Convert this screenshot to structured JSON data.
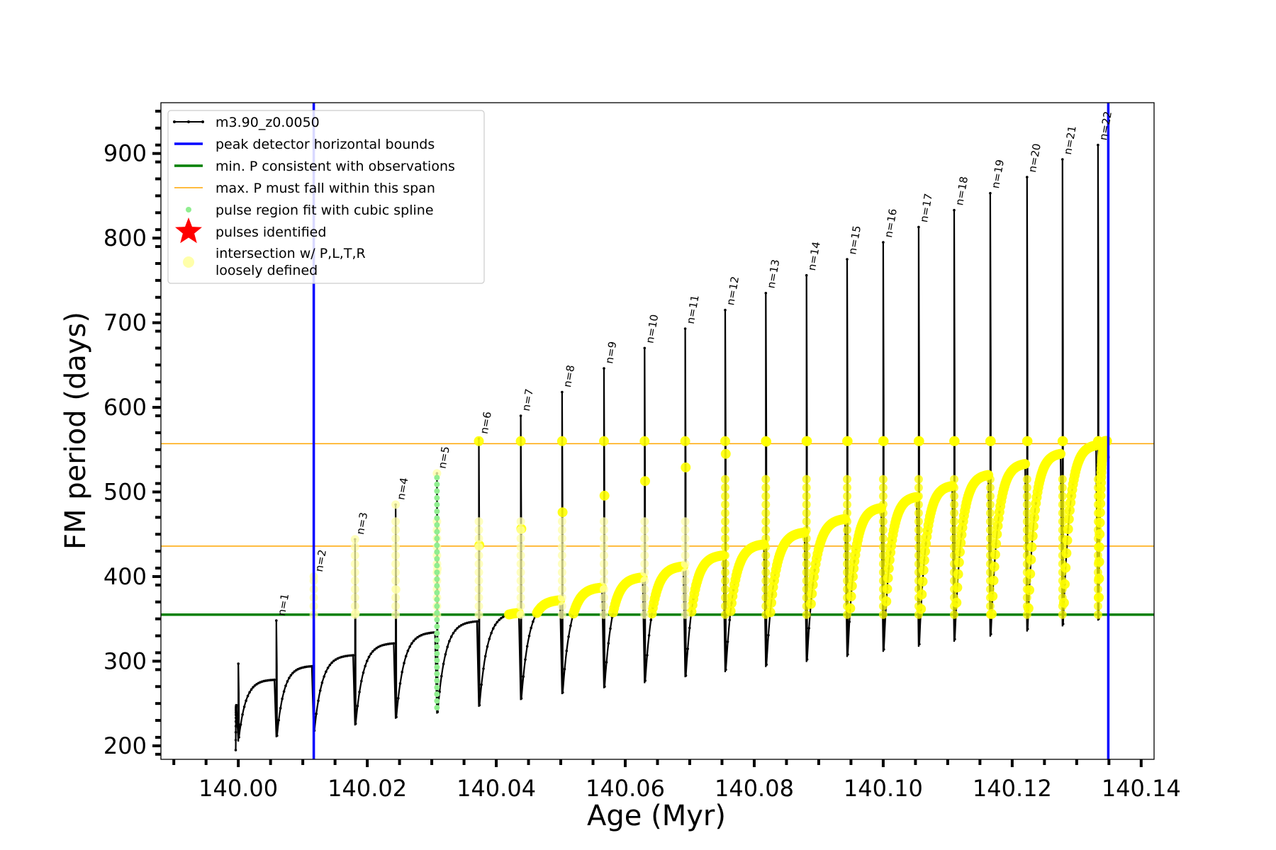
{
  "chart_data": {
    "type": "line",
    "xlabel": "Age (Myr)",
    "ylabel": "FM period (days)",
    "xlim": [
      139.988,
      140.142
    ],
    "ylim": [
      184,
      960
    ],
    "xticks": [
      140.0,
      140.02,
      140.04,
      140.06,
      140.08,
      140.1,
      140.12,
      140.14
    ],
    "xtick_labels": [
      "140.00",
      "140.02",
      "140.04",
      "140.06",
      "140.08",
      "140.10",
      "140.12",
      "140.14"
    ],
    "yticks": [
      200,
      300,
      400,
      500,
      600,
      700,
      800,
      900
    ],
    "ytick_labels": [
      "200",
      "300",
      "400",
      "500",
      "600",
      "700",
      "800",
      "900"
    ],
    "grid": false,
    "legend": {
      "placement": "top-left",
      "entries": [
        {
          "label": "m3.90_z0.0050",
          "style": "black-line-dots",
          "color": "#000000"
        },
        {
          "label": "peak detector horizontal bounds",
          "style": "line",
          "color": "#0000ff"
        },
        {
          "label": "min. P consistent with observations",
          "style": "line",
          "color": "#008000"
        },
        {
          "label": "max. P must fall within this span",
          "style": "thin-line",
          "color": "#ffa500"
        },
        {
          "label": "pulse region fit with cubic spline",
          "style": "small-dot",
          "color": "#90ee90"
        },
        {
          "label": "pulses identified",
          "style": "star",
          "color": "#ff0000"
        },
        {
          "label": "intersection w/ P,L,T,R",
          "label2": "loosely defined",
          "style": "big-dot",
          "color": "#ffffaa"
        }
      ]
    },
    "reference_lines": {
      "vertical_bounds": [
        140.0117,
        140.1349
      ],
      "min_period": 355,
      "max_period_span": [
        436,
        557
      ]
    },
    "pulses": [
      {
        "n": 0,
        "age": 139.9995,
        "end_age": 139.9995,
        "trough": 195,
        "peak_pre": 248,
        "plateau": 248,
        "dip": 195,
        "label": ""
      },
      {
        "n": 0,
        "age": 140.0,
        "end_age": 140.0059,
        "trough": 210,
        "peak_pre": 278,
        "plateau": 278,
        "dip": 205,
        "spike": 297,
        "label": ""
      },
      {
        "n": 1,
        "age": 140.0059,
        "end_age": 140.0117,
        "trough": 212,
        "peak_pre": 294,
        "plateau": 294,
        "dip": 210,
        "spike": 348,
        "label": "n=1"
      },
      {
        "n": 2,
        "age": 140.0117,
        "end_age": 140.0181,
        "trough": 218,
        "peak_pre": 307,
        "plateau": 307,
        "dip": 216,
        "spike": 400,
        "label": "n=2"
      },
      {
        "n": 3,
        "age": 140.0181,
        "end_age": 140.0244,
        "trough": 226,
        "peak_pre": 321,
        "plateau": 321,
        "dip": 224,
        "spike": 444,
        "label": "n=3"
      },
      {
        "n": 4,
        "age": 140.0244,
        "end_age": 140.0308,
        "trough": 234,
        "peak_pre": 334,
        "plateau": 334,
        "dip": 232,
        "spike": 485,
        "label": "n=4"
      },
      {
        "n": 5,
        "age": 140.0308,
        "end_age": 140.0373,
        "trough": 240,
        "peak_pre": 347,
        "plateau": 347,
        "dip": 238,
        "spike": 522,
        "label": "n=5"
      },
      {
        "n": 6,
        "age": 140.0373,
        "end_age": 140.0438,
        "trough": 248,
        "peak_pre": 357,
        "plateau": 357,
        "dip": 246,
        "spike": 563,
        "label": "n=6"
      },
      {
        "n": 7,
        "age": 140.0438,
        "end_age": 140.0502,
        "trough": 256,
        "peak_pre": 372,
        "plateau": 372,
        "dip": 254,
        "spike": 590,
        "label": "n=7"
      },
      {
        "n": 8,
        "age": 140.0502,
        "end_age": 140.0567,
        "trough": 263,
        "peak_pre": 387,
        "plateau": 387,
        "dip": 261,
        "spike": 618,
        "label": "n=8"
      },
      {
        "n": 9,
        "age": 140.0567,
        "end_age": 140.063,
        "trough": 270,
        "peak_pre": 399,
        "plateau": 399,
        "dip": 268,
        "spike": 646,
        "label": "n=9"
      },
      {
        "n": 10,
        "age": 140.063,
        "end_age": 140.0693,
        "trough": 277,
        "peak_pre": 412,
        "plateau": 412,
        "dip": 274,
        "spike": 670,
        "label": "n=10"
      },
      {
        "n": 11,
        "age": 140.0693,
        "end_age": 140.0755,
        "trough": 283,
        "peak_pre": 425,
        "plateau": 425,
        "dip": 281,
        "spike": 693,
        "label": "n=11"
      },
      {
        "n": 12,
        "age": 140.0755,
        "end_age": 140.0818,
        "trough": 290,
        "peak_pre": 438,
        "plateau": 438,
        "dip": 287,
        "spike": 715,
        "label": "n=12"
      },
      {
        "n": 13,
        "age": 140.0818,
        "end_age": 140.0881,
        "trough": 296,
        "peak_pre": 452,
        "plateau": 452,
        "dip": 293,
        "spike": 735,
        "label": "n=13"
      },
      {
        "n": 14,
        "age": 140.0881,
        "end_age": 140.0944,
        "trough": 302,
        "peak_pre": 468,
        "plateau": 468,
        "dip": 299,
        "spike": 756,
        "label": "n=14"
      },
      {
        "n": 15,
        "age": 140.0944,
        "end_age": 140.1,
        "trough": 308,
        "peak_pre": 481,
        "plateau": 481,
        "dip": 305,
        "spike": 775,
        "label": "n=15"
      },
      {
        "n": 16,
        "age": 140.1,
        "end_age": 140.1055,
        "trough": 314,
        "peak_pre": 494,
        "plateau": 494,
        "dip": 311,
        "spike": 795,
        "label": "n=16"
      },
      {
        "n": 17,
        "age": 140.1055,
        "end_age": 140.111,
        "trough": 320,
        "peak_pre": 507,
        "plateau": 507,
        "dip": 317,
        "spike": 813,
        "label": "n=17"
      },
      {
        "n": 18,
        "age": 140.111,
        "end_age": 140.1166,
        "trough": 326,
        "peak_pre": 520,
        "plateau": 520,
        "dip": 323,
        "spike": 833,
        "label": "n=18"
      },
      {
        "n": 19,
        "age": 140.1166,
        "end_age": 140.1223,
        "trough": 332,
        "peak_pre": 533,
        "plateau": 533,
        "dip": 329,
        "spike": 853,
        "label": "n=19"
      },
      {
        "n": 20,
        "age": 140.1223,
        "end_age": 140.1278,
        "trough": 338,
        "peak_pre": 545,
        "plateau": 545,
        "dip": 335,
        "spike": 872,
        "label": "n=20"
      },
      {
        "n": 21,
        "age": 140.1278,
        "end_age": 140.1333,
        "trough": 344,
        "peak_pre": 555,
        "plateau": 555,
        "dip": 341,
        "spike": 893,
        "label": "n=21"
      },
      {
        "n": 22,
        "age": 140.1333,
        "end_age": 140.135,
        "trough": 350,
        "peak_pre": 564,
        "plateau": 564,
        "dip": 348,
        "spike": 910,
        "label": "n=22"
      }
    ],
    "final_segment": {
      "end_age": 140.135,
      "end_value": 540
    },
    "spline_pulse": {
      "n": 5,
      "age": 140.0308,
      "min": 245,
      "max": 522
    }
  }
}
